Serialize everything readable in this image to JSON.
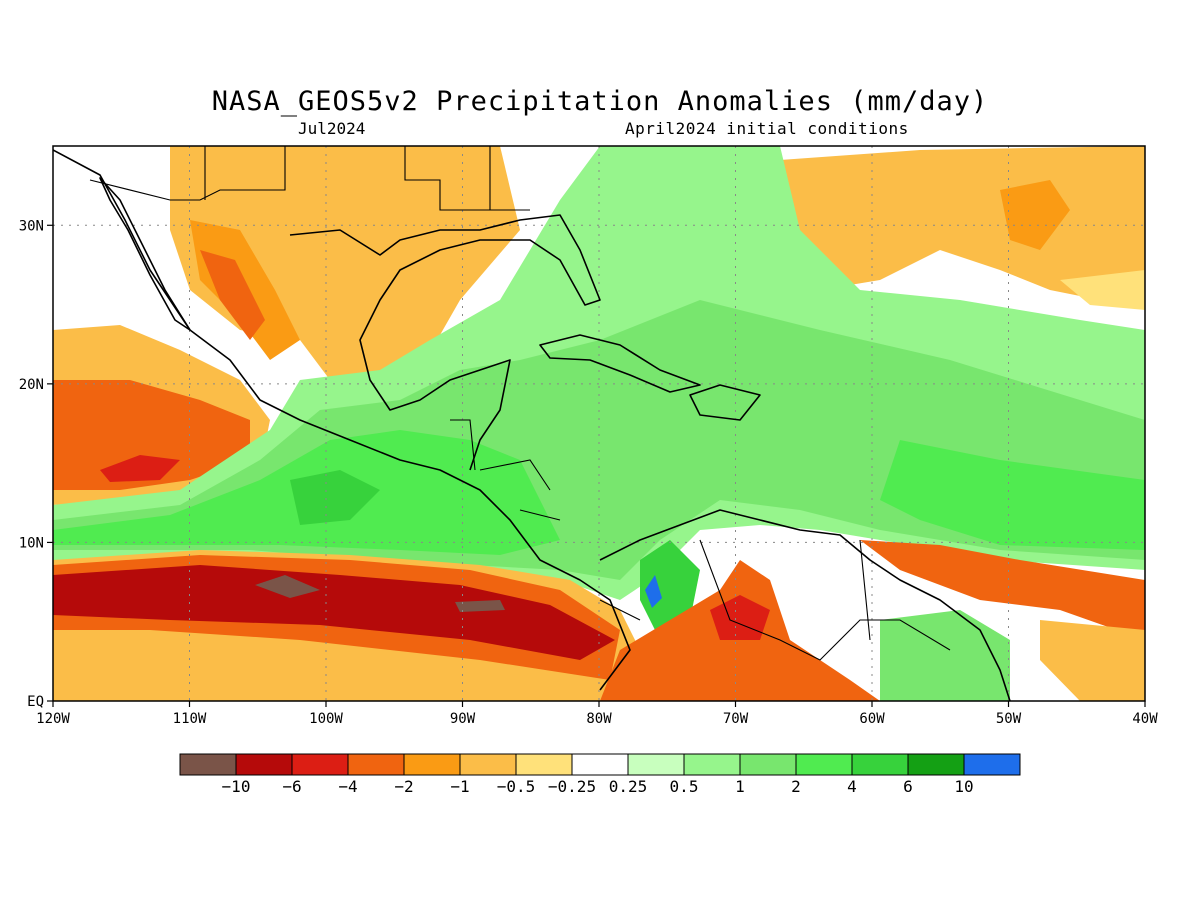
{
  "title": "NASA_GEOS5v2 Precipitation Anomalies (mm/day)",
  "subtitle_left": "Jul2024",
  "subtitle_right": "April2024 initial conditions",
  "map": {
    "lon_range": [
      -120,
      -40
    ],
    "lat_range": [
      0,
      35
    ],
    "x_ticks": [
      {
        "value": -120,
        "label": "120W"
      },
      {
        "value": -110,
        "label": "110W"
      },
      {
        "value": -100,
        "label": "100W"
      },
      {
        "value": -90,
        "label": "90W"
      },
      {
        "value": -80,
        "label": "80W"
      },
      {
        "value": -70,
        "label": "70W"
      },
      {
        "value": -60,
        "label": "60W"
      },
      {
        "value": -50,
        "label": "50W"
      },
      {
        "value": -40,
        "label": "40W"
      }
    ],
    "y_ticks": [
      {
        "value": 0,
        "label": "EQ"
      },
      {
        "value": 10,
        "label": "10N"
      },
      {
        "value": 20,
        "label": "20N"
      },
      {
        "value": 30,
        "label": "30N"
      }
    ],
    "grid": true
  },
  "colorbar": {
    "colors": [
      "#7a5448",
      "#b50a0a",
      "#dc1e14",
      "#f06410",
      "#fa9b14",
      "#fbbd48",
      "#ffe17a",
      "#ffffff",
      "#c8ffbe",
      "#96f58c",
      "#78e66e",
      "#50eb50",
      "#37d23c",
      "#14a014",
      "#1e6eeb"
    ],
    "labels": [
      "-10",
      "-6",
      "-4",
      "-2",
      "-1",
      "-0.5",
      "-0.25",
      "0.25",
      "0.5",
      "1",
      "2",
      "4",
      "6",
      "10"
    ]
  }
}
